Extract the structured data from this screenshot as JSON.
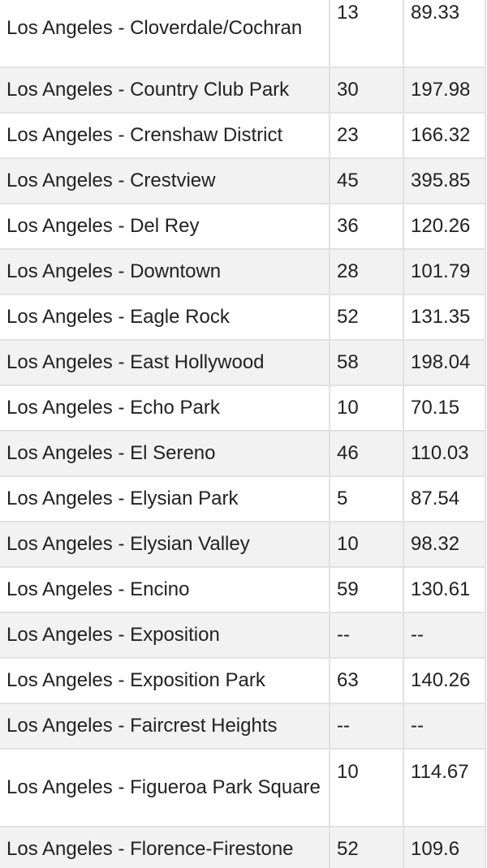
{
  "table": {
    "rows": [
      {
        "neighborhood": "Los Angeles - Cloverdale/Cochran",
        "col2": "13",
        "col3": "89.33"
      },
      {
        "neighborhood": "Los Angeles - Country Club Park",
        "col2": "30",
        "col3": "197.98"
      },
      {
        "neighborhood": "Los Angeles - Crenshaw District",
        "col2": "23",
        "col3": "166.32"
      },
      {
        "neighborhood": "Los Angeles - Crestview",
        "col2": "45",
        "col3": "395.85"
      },
      {
        "neighborhood": "Los Angeles - Del Rey",
        "col2": "36",
        "col3": "120.26"
      },
      {
        "neighborhood": "Los Angeles - Downtown",
        "col2": "28",
        "col3": "101.79"
      },
      {
        "neighborhood": "Los Angeles - Eagle Rock",
        "col2": "52",
        "col3": "131.35"
      },
      {
        "neighborhood": "Los Angeles - East Hollywood",
        "col2": "58",
        "col3": "198.04"
      },
      {
        "neighborhood": "Los Angeles - Echo Park",
        "col2": "10",
        "col3": "70.15"
      },
      {
        "neighborhood": "Los Angeles - El Sereno",
        "col2": "46",
        "col3": "110.03"
      },
      {
        "neighborhood": "Los Angeles - Elysian Park",
        "col2": "5",
        "col3": "87.54"
      },
      {
        "neighborhood": "Los Angeles - Elysian Valley",
        "col2": "10",
        "col3": "98.32"
      },
      {
        "neighborhood": "Los Angeles - Encino",
        "col2": "59",
        "col3": "130.61"
      },
      {
        "neighborhood": "Los Angeles - Exposition",
        "col2": "--",
        "col3": "--"
      },
      {
        "neighborhood": "Los Angeles - Exposition Park",
        "col2": "63",
        "col3": "140.26"
      },
      {
        "neighborhood": "Los Angeles - Faircrest Heights",
        "col2": "--",
        "col3": "--"
      },
      {
        "neighborhood": "Los Angeles - Figueroa Park Square",
        "col2": "10",
        "col3": "114.67"
      },
      {
        "neighborhood": "Los Angeles - Florence-Firestone",
        "col2": "52",
        "col3": "109.6"
      }
    ]
  }
}
